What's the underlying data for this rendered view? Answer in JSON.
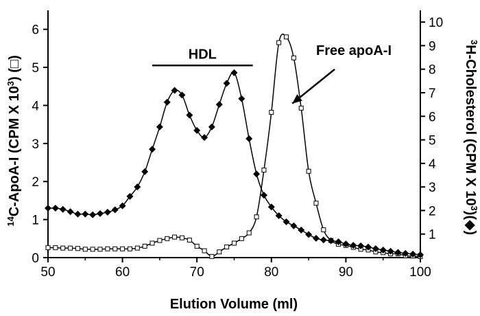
{
  "chart_data": {
    "type": "line",
    "xlabel": "Elution Volume (ml)",
    "ylabel_left": {
      "prefix": "14",
      "a": "C-ApoA-I (CPM X 10",
      "sup": "3",
      "b": ") (□)"
    },
    "ylabel_right": {
      "prefix": "3",
      "a": "H-Cholesterol (CPM X 10",
      "sup": "3",
      "b": ")(◆)"
    },
    "xlim": [
      50,
      100
    ],
    "ylim_left": [
      0,
      6.5
    ],
    "ylim_right": [
      0,
      10.5
    ],
    "x_ticks": [
      50,
      60,
      70,
      80,
      90,
      100
    ],
    "y_ticks_left": [
      0,
      1,
      2,
      3,
      4,
      5,
      6
    ],
    "y_ticks_right": [
      1,
      2,
      3,
      4,
      5,
      6,
      7,
      8,
      9,
      10
    ],
    "grid": false,
    "annotations": {
      "hdl_label": "HDL",
      "hdl_range": [
        64,
        77.5
      ],
      "hdl_bar_y": 5.05,
      "free_apoa_label": "Free apoA-I",
      "arrow_tail": [
        88.5,
        4.95
      ],
      "arrow_head": [
        82.8,
        4.05
      ]
    },
    "series": [
      {
        "marker": "open-square",
        "axis": "left",
        "x": [
          50,
          51,
          52,
          53,
          54,
          55,
          56,
          57,
          58,
          59,
          60,
          61,
          62,
          63,
          64,
          65,
          66,
          67,
          68,
          69,
          70,
          71,
          72,
          73,
          74,
          75,
          76,
          77,
          78,
          79,
          80,
          81,
          82,
          83,
          84,
          85,
          86,
          87,
          88,
          89,
          90,
          91,
          92,
          93,
          94,
          95,
          96,
          97,
          98,
          99,
          100
        ],
        "values": [
          0.26,
          0.26,
          0.25,
          0.25,
          0.24,
          0.22,
          0.22,
          0.22,
          0.23,
          0.23,
          0.23,
          0.23,
          0.25,
          0.3,
          0.38,
          0.45,
          0.5,
          0.54,
          0.52,
          0.46,
          0.3,
          0.18,
          0.03,
          0.15,
          0.28,
          0.38,
          0.5,
          0.65,
          1.07,
          2.3,
          3.82,
          5.65,
          5.8,
          5.25,
          3.93,
          2.27,
          1.43,
          0.73,
          0.45,
          0.35,
          0.32,
          0.27,
          0.22,
          0.2,
          0.15,
          0.13,
          0.1,
          0.1,
          0.05,
          0.04,
          0.03
        ]
      },
      {
        "marker": "filled-diamond",
        "axis": "right",
        "x": [
          50,
          51,
          52,
          53,
          54,
          55,
          56,
          57,
          58,
          59,
          60,
          61,
          62,
          63,
          64,
          65,
          66,
          67,
          68,
          69,
          70,
          71,
          72,
          73,
          74,
          75,
          76,
          77,
          78,
          79,
          80,
          81,
          82,
          83,
          84,
          85,
          86,
          87,
          88,
          89,
          90,
          91,
          92,
          93,
          94,
          95,
          96,
          97,
          98,
          99,
          100
        ],
        "values": [
          2.1,
          2.1,
          2.05,
          1.95,
          1.85,
          1.85,
          1.82,
          1.87,
          1.93,
          2.03,
          2.2,
          2.6,
          3.0,
          3.65,
          4.6,
          5.55,
          6.6,
          7.1,
          6.9,
          6.05,
          5.4,
          5.1,
          5.55,
          6.5,
          7.4,
          7.85,
          6.75,
          5.05,
          3.55,
          2.65,
          2.15,
          1.78,
          1.52,
          1.35,
          1.17,
          0.98,
          0.82,
          0.75,
          0.72,
          0.67,
          0.58,
          0.52,
          0.5,
          0.45,
          0.38,
          0.32,
          0.27,
          0.22,
          0.18,
          0.15,
          0.12
        ]
      }
    ]
  }
}
